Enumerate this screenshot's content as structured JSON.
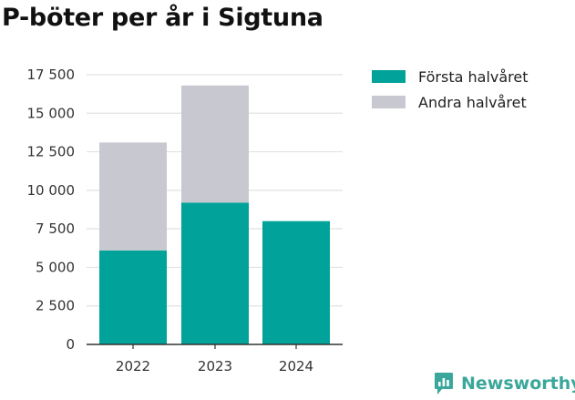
{
  "chart_data": {
    "type": "bar",
    "stacked": true,
    "title": "P-böter per år i Sigtuna",
    "xlabel": "",
    "ylabel": "",
    "categories": [
      "2022",
      "2023",
      "2024"
    ],
    "series": [
      {
        "name": "Första halvåret",
        "color": "#00a29a",
        "values": [
          6100,
          9200,
          8000
        ]
      },
      {
        "name": "Andra halvåret",
        "color": "#c8c8d0",
        "values": [
          7000,
          7600,
          0
        ]
      }
    ],
    "ylim": [
      0,
      17500
    ],
    "yticks": [
      0,
      2500,
      5000,
      7500,
      10000,
      12500,
      15000,
      17500
    ],
    "ytick_labels": [
      "0",
      "2 500",
      "5 000",
      "7 500",
      "10 000",
      "12 500",
      "15 000",
      "17 500"
    ],
    "grid": true,
    "legend_position": "top-right"
  },
  "brand": {
    "name": "Newsworthy",
    "color": "#3aa79a",
    "icon": "newsworthy-logo-icon"
  }
}
